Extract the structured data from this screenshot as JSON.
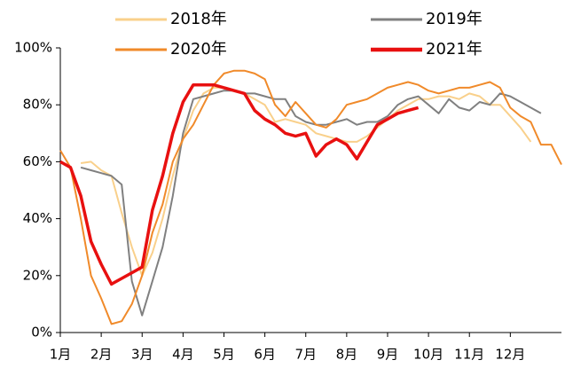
{
  "chart_data": {
    "type": "line",
    "categories": [
      "1月",
      null,
      null,
      null,
      "2月",
      null,
      null,
      null,
      "3月",
      null,
      null,
      null,
      "4月",
      null,
      null,
      null,
      "5月",
      null,
      null,
      null,
      "6月",
      null,
      null,
      null,
      "7月",
      null,
      null,
      null,
      "8月",
      null,
      null,
      null,
      "9月",
      null,
      null,
      null,
      "10月",
      null,
      null,
      null,
      "11月",
      null,
      null,
      null,
      "12月",
      null,
      null,
      null,
      null,
      null
    ],
    "series": [
      {
        "name": "2018年",
        "color": "#f9d08b",
        "values": [
          null,
          null,
          59.5,
          60,
          57,
          55,
          42,
          30,
          20,
          28,
          40,
          55,
          68,
          78,
          84,
          86,
          86,
          85,
          84,
          82,
          80,
          74,
          75,
          74,
          73,
          70,
          69,
          68,
          67,
          67,
          69,
          72,
          75,
          78,
          80,
          82,
          82,
          83,
          83,
          82,
          84,
          83,
          80,
          80,
          76,
          72,
          67,
          null,
          null,
          null
        ]
      },
      {
        "name": "2019年",
        "color": "#808080",
        "values": [
          null,
          null,
          58,
          57,
          56,
          55,
          52,
          18,
          6,
          18,
          30,
          48,
          70,
          82,
          83,
          84,
          85,
          85,
          84,
          84,
          83,
          82,
          82,
          76,
          74,
          73,
          73,
          74,
          75,
          73,
          74,
          74,
          76,
          80,
          82,
          83,
          80,
          77,
          82,
          79,
          78,
          81,
          80,
          84,
          83,
          81,
          79,
          77,
          null,
          null
        ]
      },
      {
        "name": "2020年",
        "color": "#f08a2a",
        "values": [
          64,
          58,
          40,
          20,
          12,
          3,
          4,
          10,
          20,
          35,
          45,
          60,
          68,
          73,
          80,
          87,
          91,
          92,
          92,
          91,
          89,
          80,
          76,
          81,
          77,
          73,
          72,
          75,
          80,
          81,
          82,
          84,
          86,
          87,
          88,
          87,
          85,
          84,
          85,
          86,
          86,
          87,
          88,
          86,
          79,
          76,
          74,
          66,
          66,
          59
        ]
      },
      {
        "name": "2021年",
        "color": "#e81010",
        "values": [
          60,
          58,
          48,
          32,
          24,
          17,
          19,
          21,
          23,
          43,
          55,
          70,
          81,
          87,
          87,
          87,
          86,
          85,
          84,
          78,
          75,
          73,
          70,
          69,
          70,
          62,
          66,
          68,
          66,
          61,
          67,
          73,
          75,
          77,
          78,
          79,
          null,
          null,
          null,
          null,
          null,
          null,
          null,
          null,
          null,
          null,
          null,
          null,
          null,
          null
        ]
      }
    ],
    "ylim": [
      0,
      100
    ],
    "yticks": [
      {
        "value": 0,
        "label": "0%"
      },
      {
        "value": 20,
        "label": "20%"
      },
      {
        "value": 40,
        "label": "40%"
      },
      {
        "value": 60,
        "label": "60%"
      },
      {
        "value": 80,
        "label": "80%"
      },
      {
        "value": 100,
        "label": "100%"
      }
    ],
    "grid": false
  }
}
